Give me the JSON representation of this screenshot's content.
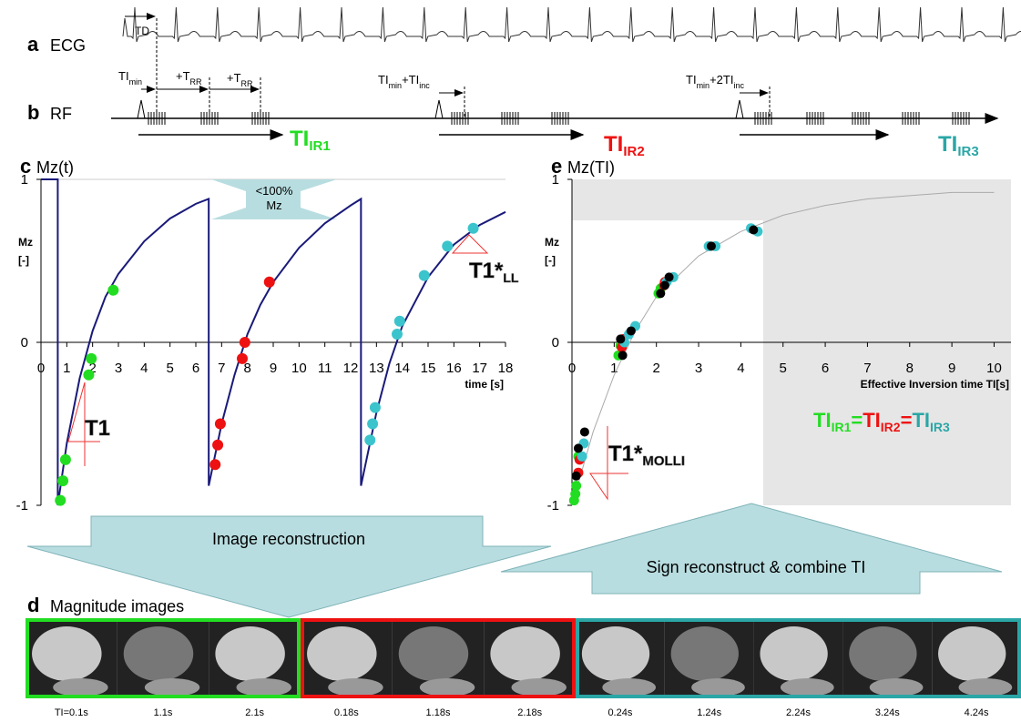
{
  "panel_a": {
    "letter": "a",
    "label": "ECG",
    "annotation": "TD"
  },
  "panel_b": {
    "letter": "b",
    "label": "RF",
    "timing_labels": [
      [
        "TI",
        "min"
      ],
      [
        "+T",
        "RR"
      ],
      [
        "+T",
        "RR"
      ],
      [
        "TI",
        "min",
        "+TI",
        "inc"
      ],
      [
        "TI",
        "min",
        "+2TI",
        "inc"
      ]
    ],
    "ir_labels": [
      {
        "parts": [
          "TI",
          "IR1"
        ],
        "color": "#22dd22"
      },
      {
        "parts": [
          "TI",
          "IR2"
        ],
        "color": "#ee1111"
      },
      {
        "parts": [
          "TI",
          "IR3"
        ],
        "color": "#2aa6a6"
      }
    ]
  },
  "chart_data": [
    {
      "type": "line",
      "panel": "c",
      "title": "Mz(t)",
      "y_label": [
        "Mz",
        "[-]"
      ],
      "x_label": "time [s]",
      "xlim": [
        0,
        18
      ],
      "xticks": [
        0,
        1,
        2,
        3,
        4,
        5,
        6,
        7,
        8,
        9,
        10,
        11,
        12,
        13,
        14,
        15,
        16,
        17,
        18
      ],
      "ylim": [
        -1,
        1
      ],
      "yticks": [
        -1,
        0,
        1
      ],
      "series": [
        {
          "color": "#1a1a7a",
          "x": [
            0,
            0.65,
            0.65,
            1,
            1.5,
            2,
            2.5,
            3,
            4,
            5,
            6,
            6.5,
            6.5,
            7,
            7.5,
            8,
            8.5,
            9,
            10,
            11,
            12,
            12.4,
            12.4,
            13,
            13.5,
            14,
            15,
            16,
            17,
            18
          ],
          "values": [
            1,
            1,
            -1,
            -0.62,
            -0.22,
            0.07,
            0.28,
            0.42,
            0.62,
            0.76,
            0.85,
            0.88,
            -0.88,
            -0.5,
            -0.2,
            0.05,
            0.23,
            0.37,
            0.58,
            0.73,
            0.84,
            0.88,
            -0.88,
            -0.43,
            -0.13,
            0.1,
            0.4,
            0.6,
            0.72,
            0.8
          ]
        }
      ],
      "readouts": [
        {
          "color": "#22dd22",
          "x": [
            0.75,
            0.85,
            0.95,
            1.85,
            1.95,
            2.8
          ],
          "values": [
            -0.97,
            -0.85,
            -0.72,
            -0.2,
            -0.1,
            0.32
          ]
        },
        {
          "color": "#ee1111",
          "x": [
            6.75,
            6.85,
            6.95,
            7.8,
            7.9,
            8.85
          ],
          "values": [
            -0.75,
            -0.63,
            -0.5,
            -0.1,
            0.0,
            0.37
          ]
        },
        {
          "color": "#3cc4cc",
          "x": [
            12.75,
            12.85,
            12.95,
            13.8,
            13.9,
            14.85,
            15.75,
            16.75
          ],
          "values": [
            -0.6,
            -0.5,
            -0.4,
            0.05,
            0.13,
            0.41,
            0.59,
            0.7
          ]
        }
      ],
      "note": [
        "<100%",
        "Mz"
      ],
      "t1_label": [
        "T1"
      ],
      "t1star_label": [
        "T1*",
        "LL"
      ]
    },
    {
      "type": "scatter",
      "panel": "e",
      "title": "Mz(TI)",
      "y_label": [
        "Mz",
        "[-]"
      ],
      "x_label": "Effective Inversion time TI[s]",
      "xlim": [
        0,
        10.4
      ],
      "xticks": [
        0,
        1,
        2,
        3,
        4,
        5,
        6,
        7,
        8,
        9,
        10
      ],
      "ylim": [
        -1,
        1
      ],
      "yticks": [
        -1,
        0,
        1
      ],
      "fit": {
        "color": "#aaaaaa",
        "x": [
          0,
          0.5,
          1,
          1.5,
          2,
          3,
          4,
          5,
          6,
          7,
          8,
          9,
          10
        ],
        "values": [
          -1,
          -0.55,
          -0.2,
          0.07,
          0.28,
          0.53,
          0.68,
          0.78,
          0.84,
          0.88,
          0.9,
          0.92,
          0.92
        ]
      },
      "series": [
        {
          "color": "#22dd22",
          "x": [
            0.05,
            0.08,
            0.1,
            0.15,
            1.1,
            1.15,
            2.05,
            2.1
          ],
          "values": [
            -0.97,
            -0.93,
            -0.88,
            -0.7,
            -0.08,
            -0.02,
            0.3,
            0.33
          ]
        },
        {
          "color": "#ee1111",
          "x": [
            0.15,
            0.18,
            1.18,
            1.22,
            2.18,
            2.2
          ],
          "values": [
            -0.8,
            -0.72,
            -0.03,
            0.02,
            0.35,
            0.37
          ]
        },
        {
          "color": "#3cc4cc",
          "x": [
            0.24,
            0.28,
            1.24,
            1.35,
            1.5,
            2.24,
            2.4,
            3.24,
            3.4,
            4.24,
            4.4
          ],
          "values": [
            -0.7,
            -0.62,
            0.0,
            0.05,
            0.1,
            0.37,
            0.4,
            0.59,
            0.59,
            0.7,
            0.68
          ]
        },
        {
          "color": "#000000",
          "x": [
            0.1,
            0.15,
            0.3,
            1.15,
            1.2,
            1.4,
            2.1,
            2.2,
            2.3,
            3.3,
            4.3
          ],
          "values": [
            -0.82,
            -0.65,
            -0.55,
            0.02,
            -0.08,
            0.07,
            0.3,
            0.35,
            0.4,
            0.59,
            0.69
          ]
        }
      ],
      "equation": [
        {
          "parts": [
            "TI",
            "IR1"
          ],
          "color": "#22dd22"
        },
        {
          "parts": [
            "="
          ],
          "color": "#22dd22"
        },
        {
          "parts": [
            "TI",
            "IR2"
          ],
          "color": "#ee1111"
        },
        {
          "parts": [
            "="
          ],
          "color": "#ee1111"
        },
        {
          "parts": [
            "TI",
            "IR3"
          ],
          "color": "#2aa6a6"
        }
      ],
      "t1star_label": [
        "T1*",
        "MOLLI"
      ]
    }
  ],
  "arrows": {
    "reconstruction": "Image reconstruction",
    "combine": "Sign reconstruct & combine TI"
  },
  "panel_d": {
    "letter": "d",
    "title": "Magnitude images",
    "frames": [
      {
        "color": "#22dd22",
        "labels": [
          "TI=0.1s",
          "1.1s",
          "2.1s"
        ]
      },
      {
        "color": "#ee1111",
        "labels": [
          "0.18s",
          "1.18s",
          "2.18s"
        ]
      },
      {
        "color": "#2aa6a6",
        "labels": [
          "0.24s",
          "1.24s",
          "2.24s",
          "3.24s",
          "4.24s"
        ]
      }
    ]
  }
}
